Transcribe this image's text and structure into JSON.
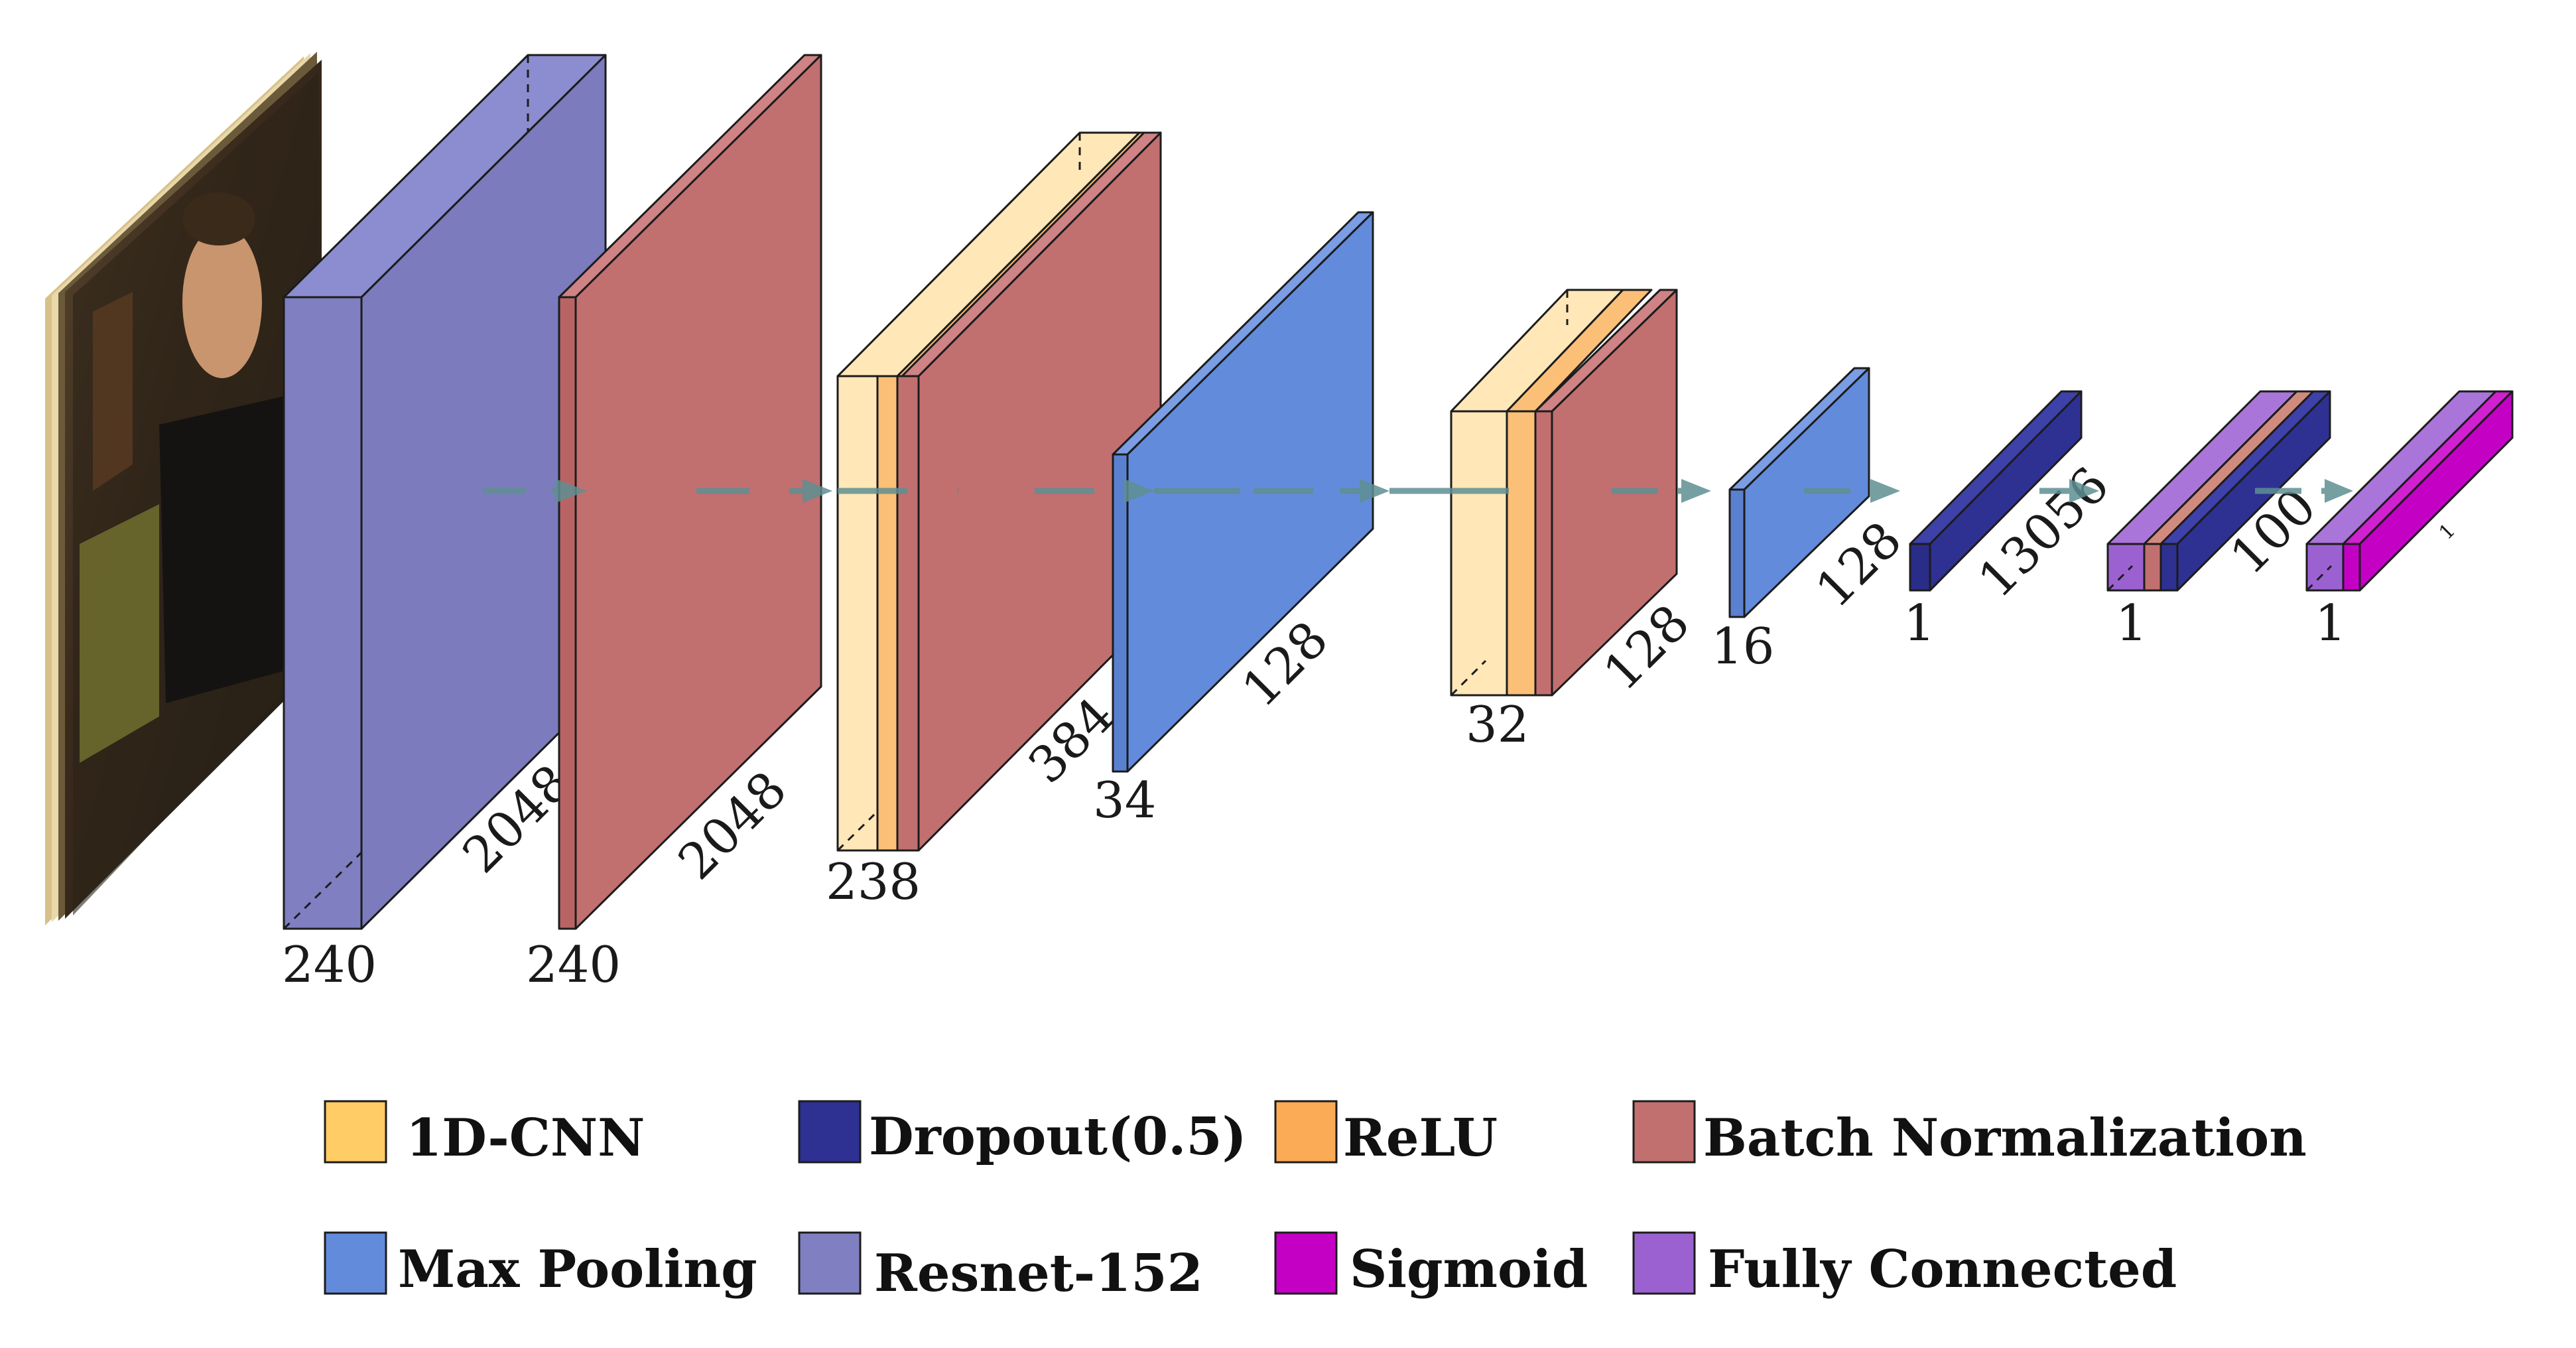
{
  "colors": {
    "cnn": "#ffe7b8",
    "cnn_side": "#f5d9a6",
    "relu": "#fbbf77",
    "batchnorm": "#c26f70",
    "maxpool": "#638bdc",
    "resnet": "#7f7fc1",
    "dropout": "#2e3192",
    "sigmoid": "#c400c4",
    "fc": "#9b61d1",
    "arrow": "#5f8f92"
  },
  "layers": {
    "input": {
      "label": "input-frames"
    },
    "resnet": {
      "width": "240",
      "depth": "2048"
    },
    "batchnorm1": {
      "width": "240",
      "depth": "2048"
    },
    "cnn1": {
      "width": "238",
      "depth": "384"
    },
    "maxpool1": {
      "width": "34",
      "depth": "128"
    },
    "cnn2": {
      "width": "32",
      "depth": "128"
    },
    "maxpool2": {
      "width": "16",
      "depth": "128"
    },
    "dropout": {
      "width": "1",
      "depth": "13056"
    },
    "fc1": {
      "width": "1",
      "depth": "100"
    },
    "fc2": {
      "width": "1",
      "depth": "1"
    }
  },
  "legend": [
    {
      "key": "cnn",
      "label": "1D-CNN",
      "color": "#ffcc66"
    },
    {
      "key": "dropout",
      "label": "Dropout(0.5)",
      "color": "#2e3192"
    },
    {
      "key": "relu",
      "label": "ReLU",
      "color": "#fbaa55"
    },
    {
      "key": "batchnorm",
      "label": "Batch Normalization",
      "color": "#c26f70"
    },
    {
      "key": "maxpool",
      "label": "Max Pooling",
      "color": "#638bdc"
    },
    {
      "key": "resnet",
      "label": "Resnet-152",
      "color": "#7f7fc1"
    },
    {
      "key": "sigmoid",
      "label": "Sigmoid",
      "color": "#c400c4"
    },
    {
      "key": "fc",
      "label": "Fully Connected",
      "color": "#9b61d1"
    }
  ]
}
